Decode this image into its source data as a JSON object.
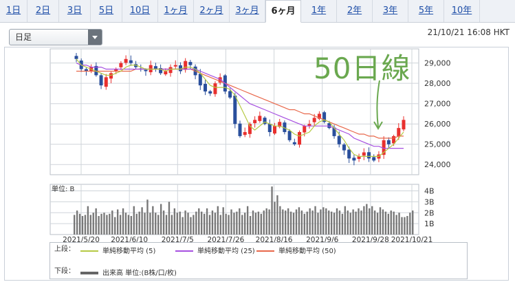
{
  "tabs": [
    {
      "label": "1日"
    },
    {
      "label": "2日"
    },
    {
      "label": "3日"
    },
    {
      "label": "5日"
    },
    {
      "label": "10日"
    },
    {
      "label": "1ヶ月"
    },
    {
      "label": "2ヶ月"
    },
    {
      "label": "3ヶ月"
    },
    {
      "label": "6ヶ月",
      "active": true
    },
    {
      "label": "1年"
    },
    {
      "label": "2年"
    },
    {
      "label": "3年"
    },
    {
      "label": "5年"
    },
    {
      "label": "10年"
    }
  ],
  "period_select": {
    "value": "日足"
  },
  "timestamp": "21/10/21 16:08 HKT",
  "annotation": "50日線",
  "colors": {
    "up": "#e8302e",
    "down": "#2a4f9c",
    "ma5": "#b5c943",
    "ma25": "#a64fe0",
    "ma50": "#e8674a",
    "volume": "#777777",
    "grid": "#cfd4da",
    "annotation": "#6aa84f"
  },
  "legend": {
    "upper_label": "上段：",
    "lower_label": "下段：",
    "ma5": "単純移動平均 (5)",
    "ma25": "単純移動平均 (25)",
    "ma50": "単純移動平均 (50)",
    "volume": "出来高 単位:(B株/口/枚)"
  },
  "chart_data": [
    {
      "type": "candlestick",
      "y_ticks": [
        "29,000",
        "28,000",
        "27,000",
        "26,000",
        "25,000",
        "24,000"
      ],
      "y_tick_values": [
        29000,
        28000,
        27000,
        26000,
        25000,
        24000
      ],
      "ylim": [
        23500,
        29700
      ],
      "x_labels": [
        "2021/5/20",
        "2021/6/10",
        "2021/7/5",
        "2021/7/26",
        "2021/8/16",
        "2021/9/6",
        "2021/9/28",
        "2021/10/21"
      ],
      "close_path": [
        29200,
        28700,
        28600,
        28800,
        28400,
        27900,
        28300,
        28500,
        28700,
        29000,
        29200,
        29000,
        28800,
        28700,
        28600,
        28900,
        28700,
        28500,
        28600,
        28800,
        28900,
        28600,
        29100,
        28900,
        28400,
        27900,
        27600,
        27500,
        28000,
        28300,
        27600,
        27300,
        26000,
        25400,
        25600,
        26000,
        26200,
        26400,
        26000,
        25600,
        25900,
        26100,
        25600,
        25200,
        25000,
        25600,
        25900,
        26000,
        26300,
        26500,
        26100,
        25800,
        25400,
        25000,
        24700,
        24300,
        24200,
        24400,
        24600,
        24300,
        24200,
        24500,
        25200,
        25000,
        25400,
        25800,
        26200
      ],
      "ma5": [
        29200,
        28900,
        28800,
        28700,
        28600,
        28500,
        28400,
        28400,
        28500,
        28600,
        28800,
        28900,
        28900,
        28800,
        28700,
        28700,
        28700,
        28700,
        28600,
        28700,
        28700,
        28700,
        28800,
        28800,
        28700,
        28500,
        28200,
        27900,
        27800,
        27800,
        27800,
        27700,
        27400,
        26900,
        26400,
        25900,
        25700,
        25900,
        26100,
        26000,
        25900,
        25900,
        25800,
        25700,
        25500,
        25400,
        25500,
        25600,
        25900,
        26100,
        26200,
        26100,
        25800,
        25500,
        25200,
        24800,
        24500,
        24400,
        24400,
        24400,
        24400,
        24400,
        24600,
        24800,
        25000,
        25300,
        25600
      ],
      "ma25": [
        29000,
        28900,
        28900,
        28800,
        28800,
        28800,
        28700,
        28700,
        28700,
        28700,
        28700,
        28700,
        28700,
        28700,
        28700,
        28700,
        28700,
        28700,
        28700,
        28700,
        28700,
        28700,
        28700,
        28700,
        28700,
        28600,
        28500,
        28400,
        28300,
        28200,
        28000,
        27800,
        27600,
        27400,
        27200,
        27000,
        26900,
        26800,
        26700,
        26600,
        26500,
        26400,
        26300,
        26200,
        26100,
        26000,
        25900,
        25900,
        25900,
        25900,
        25900,
        25900,
        25800,
        25700,
        25600,
        25500,
        25300,
        25200,
        25100,
        25000,
        24900,
        24900,
        24800,
        24800,
        24800,
        24800,
        24800
      ],
      "ma50": [
        28600,
        28600,
        28600,
        28600,
        28600,
        28600,
        28600,
        28600,
        28600,
        28600,
        28600,
        28600,
        28700,
        28700,
        28700,
        28700,
        28700,
        28700,
        28700,
        28700,
        28700,
        28700,
        28700,
        28700,
        28600,
        28500,
        28400,
        28300,
        28200,
        28100,
        28000,
        27900,
        27800,
        27700,
        27600,
        27500,
        27400,
        27300,
        27200,
        27100,
        27000,
        26900,
        26800,
        26700,
        26700,
        26600,
        26500,
        26500,
        26400,
        26300,
        26200,
        26100,
        26000,
        25900,
        25800,
        25700,
        25600,
        25500,
        25500,
        25400,
        25400,
        25300,
        25300,
        25300,
        25300,
        25400,
        25400
      ]
    },
    {
      "type": "bar",
      "unit_label": "単位: B",
      "y_ticks": [
        "4B",
        "3B",
        "2B",
        "1B"
      ],
      "y_tick_values": [
        4,
        3,
        2,
        1
      ],
      "ylim": [
        0,
        4.6
      ],
      "values": [
        1.8,
        2.2,
        1.9,
        1.7,
        1.8,
        2.6,
        1.8,
        2.0,
        2.4,
        1.7,
        1.9,
        2.0,
        1.8,
        1.9,
        2.2,
        1.6,
        2.3,
        1.8,
        2.4,
        2.0,
        1.8,
        1.7,
        2.6,
        1.9,
        2.1,
        2.5,
        2.0,
        3.2,
        2.0,
        2.6,
        2.0,
        1.8,
        2.8,
        2.2,
        1.8,
        3.0,
        1.8,
        2.4,
        2.0,
        2.1,
        1.6,
        2.2,
        2.0,
        1.6,
        1.8,
        2.1,
        2.4,
        2.1,
        1.9,
        2.4,
        1.8,
        2.2,
        2.0,
        2.6,
        1.8,
        2.5,
        1.9,
        1.8,
        2.3,
        2.0,
        2.1,
        2.4,
        1.8,
        2.0,
        2.6,
        1.7,
        2.2,
        2.0,
        2.1,
        1.9,
        2.2,
        2.4,
        2.3,
        4.4,
        3.0,
        3.6,
        2.6,
        2.3,
        2.2,
        2.4,
        2.1,
        2.0,
        2.3,
        2.5,
        2.2,
        1.9,
        2.1,
        2.4,
        2.2,
        2.6,
        2.0,
        2.3,
        2.5,
        2.4,
        2.2,
        2.1,
        2.0,
        2.4,
        2.2,
        1.9,
        2.6,
        2.2,
        2.0,
        2.3,
        2.1,
        2.4,
        2.2,
        2.6,
        2.8,
        2.4,
        2.6,
        2.2,
        2.0,
        2.5,
        2.3,
        2.1,
        1.9,
        2.2,
        2.1,
        1.8,
        2.0,
        1.6,
        1.6,
        1.7,
        2.0,
        2.2
      ]
    }
  ]
}
